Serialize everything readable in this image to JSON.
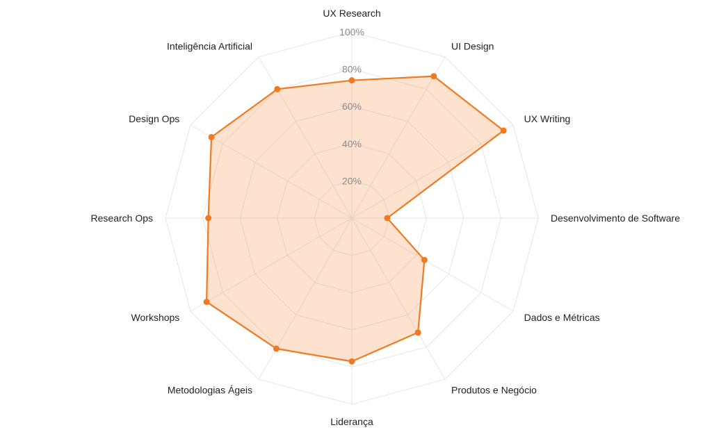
{
  "chart_data": {
    "type": "radar",
    "categories": [
      "UX Research",
      "UI Design",
      "UX Writing",
      "Desenvolvimento de Software",
      "Dados e Métricas",
      "Produtos e Negócio",
      "Liderança",
      "Metodologias Ágeis",
      "Workshops",
      "Research Ops",
      "Design Ops",
      "Inteligência Artificial"
    ],
    "series": [
      {
        "values": [
          74,
          88,
          94,
          19,
          45,
          71,
          77,
          81,
          90,
          77,
          87,
          80
        ]
      }
    ],
    "rlim": [
      0,
      100
    ],
    "ticks": [
      "20%",
      "40%",
      "60%",
      "80%",
      "100%"
    ],
    "tick_values": [
      20,
      40,
      60,
      80,
      100
    ],
    "grid": true,
    "legend": "none"
  },
  "colors": {
    "line": "#f07a22",
    "fill": "rgba(247, 160, 100, 0.30)",
    "point": "#f07a22",
    "grid": "#e6e6e6"
  }
}
